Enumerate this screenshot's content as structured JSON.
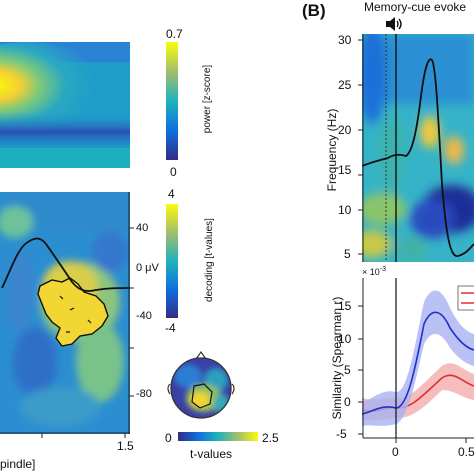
{
  "panel_b": {
    "label": "(B)",
    "title": "Memory-cue evoke",
    "speaker_icon": "speaker-icon"
  },
  "tf_top": {
    "cbar_max": "0.7",
    "cbar_min": "0",
    "cbar_label": "power [z-score]"
  },
  "decoding": {
    "y_ticks": [
      "40",
      "0 μV",
      "-40",
      "-80"
    ],
    "cbar_max": "4",
    "cbar_min": "-4",
    "cbar_label": "decoding [t-values]",
    "x_tick_end": "1.5",
    "x_label_fragment": "pindle]"
  },
  "topo": {
    "cbar_min": "0",
    "cbar_max": "2.5",
    "cbar_label": "t-values"
  },
  "freq_plot": {
    "y_ticks": [
      "30",
      "25",
      "20",
      "15",
      "10",
      "5"
    ],
    "ylabel": "Frequency (Hz)"
  },
  "similarity": {
    "exponent": "× 10",
    "exponent_power": "-3",
    "y_ticks": [
      "15",
      "10",
      "5",
      "0",
      "-5"
    ],
    "ylabel": "Similarity (Spearman r)",
    "x_ticks": [
      "0",
      "0.5"
    ]
  },
  "colors": {
    "parula_dark": "#352a87",
    "parula_mid": "#1fa7c3",
    "parula_yellow": "#f9fb0e",
    "blue_line": "#2030c8",
    "red_line": "#e03030"
  }
}
